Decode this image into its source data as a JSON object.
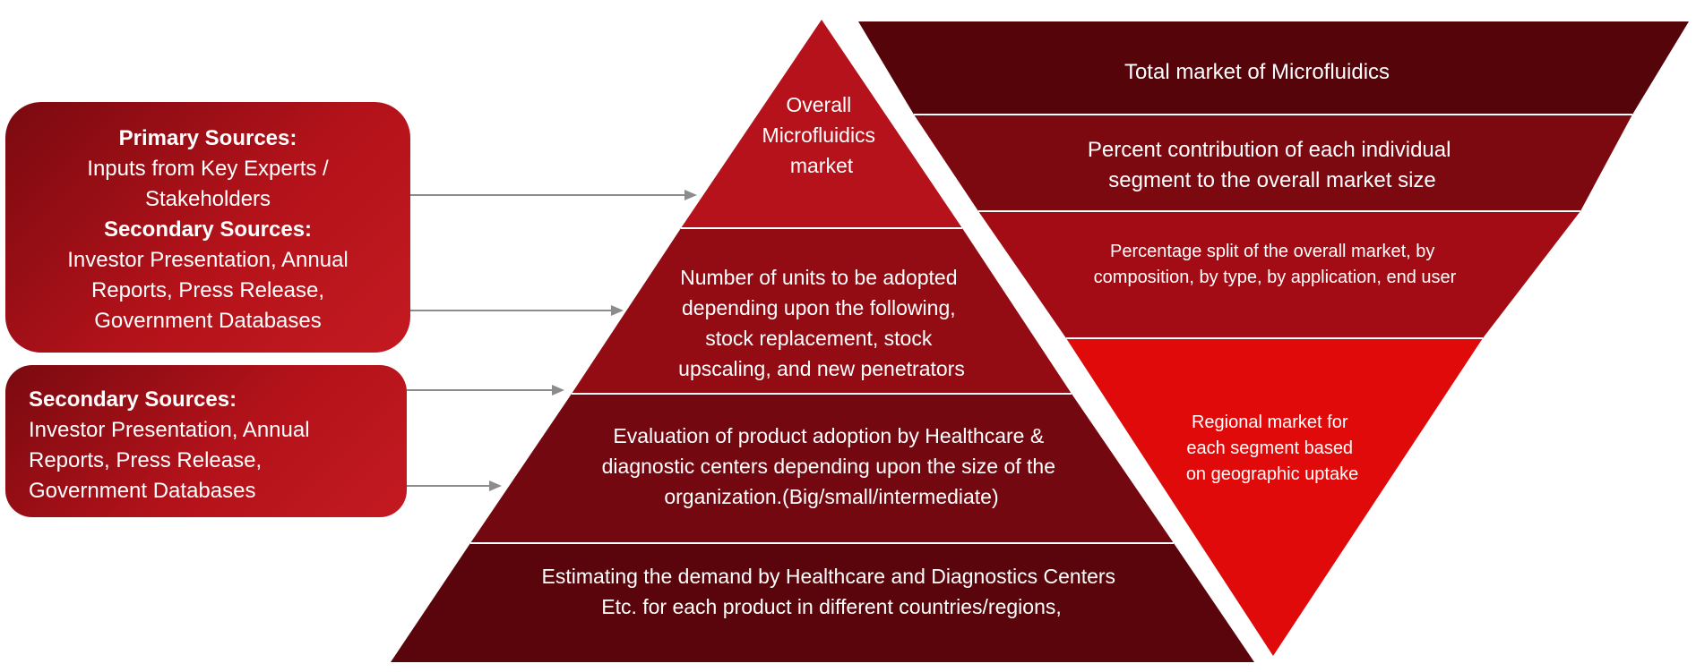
{
  "left_boxes": {
    "box1": {
      "primary_heading": "Primary Sources:",
      "primary_text_line1": "Inputs from Key Experts /",
      "primary_text_line2": "Stakeholders",
      "secondary_heading": "Secondary Sources:",
      "secondary_text_line1": "Investor Presentation, Annual",
      "secondary_text_line2": "Reports, Press Release,",
      "secondary_text_line3": "Government Databases"
    },
    "box2": {
      "secondary_heading": "Secondary Sources:",
      "text_line1": "Investor Presentation, Annual",
      "text_line2": "Reports, Press Release,",
      "text_line3": "Government Databases"
    }
  },
  "pyramid": {
    "levels": [
      {
        "lines": [
          "Overall",
          "Microfluidics",
          "market"
        ],
        "color": "#b5121b"
      },
      {
        "lines": [
          "Number of units to be adopted",
          "depending upon the following,",
          "stock replacement, stock",
          "upscaling, and new penetrators"
        ],
        "color": "#930b13"
      },
      {
        "lines": [
          "Evaluation of product adoption by Healthcare &",
          "diagnostic centers depending upon the size of the",
          "organization.(Big/small/intermediate)"
        ],
        "color": "#740810"
      },
      {
        "lines": [
          "Estimating the demand by Healthcare and Diagnostics Centers",
          "Etc. for each product in different countries/regions,"
        ],
        "color": "#5a050b"
      }
    ]
  },
  "inverted_pyramid": {
    "levels": [
      {
        "lines": [
          "Total market of Microfluidics"
        ],
        "color": "#55040a"
      },
      {
        "lines": [
          "Percent contribution of each individual",
          "segment to the overall market size"
        ],
        "color": "#7c0810"
      },
      {
        "lines": [
          "Percentage split of the overall market, by",
          "composition, by type, by application, end user"
        ],
        "color": "#a30c14"
      },
      {
        "lines": [
          "Regional market for",
          "each segment based",
          "on geographic uptake"
        ],
        "color": "#e00a0a"
      }
    ]
  }
}
